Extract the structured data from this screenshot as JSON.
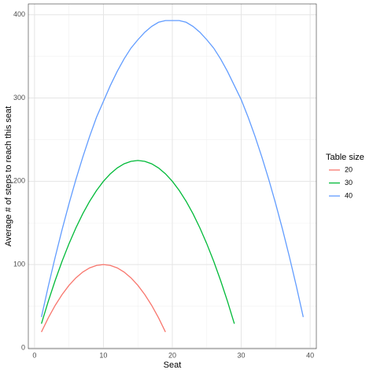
{
  "chart_data": {
    "type": "line",
    "x_label": "Seat",
    "y_label": "Average # of steps to reach this seat",
    "legend_title": "Table size",
    "legend_position": "right",
    "grid": true,
    "xlim": [
      -0.9,
      40.9
    ],
    "ylim": [
      -1,
      413
    ],
    "xticks": [
      0,
      10,
      20,
      30,
      40
    ],
    "yticks": [
      0,
      100,
      200,
      300,
      400
    ],
    "xminor": [
      5,
      15,
      25,
      35
    ],
    "yminor": [
      50,
      150,
      250,
      350
    ],
    "series": [
      {
        "name": "20",
        "color": "#f8766d",
        "x": [
          1,
          2,
          3,
          4,
          5,
          6,
          7,
          8,
          9,
          10,
          11,
          12,
          13,
          14,
          15,
          16,
          17,
          18,
          19
        ],
        "values": [
          19,
          36,
          51,
          64,
          75,
          84,
          91,
          96,
          99,
          100,
          99,
          96,
          91,
          84,
          75,
          64,
          51,
          36,
          19
        ]
      },
      {
        "name": "30",
        "color": "#00ba38",
        "x": [
          1,
          2,
          3,
          4,
          5,
          6,
          7,
          8,
          9,
          10,
          11,
          12,
          13,
          14,
          15,
          16,
          17,
          18,
          19,
          20,
          21,
          22,
          23,
          24,
          25,
          26,
          27,
          28,
          29
        ],
        "values": [
          29,
          56,
          81,
          104,
          125,
          144,
          161,
          176,
          189,
          200,
          209,
          216,
          221,
          224,
          225,
          224,
          221,
          216,
          209,
          200,
          189,
          176,
          161,
          144,
          125,
          104,
          81,
          56,
          29
        ]
      },
      {
        "name": "40",
        "color": "#619cff",
        "x": [
          1,
          2,
          3,
          4,
          5,
          6,
          7,
          8,
          9,
          10,
          11,
          12,
          13,
          14,
          15,
          16,
          17,
          18,
          19,
          20,
          21,
          22,
          23,
          24,
          25,
          26,
          27,
          28,
          29,
          30,
          31,
          32,
          33,
          34,
          35,
          36,
          37,
          38,
          39
        ],
        "values": [
          37,
          74,
          109,
          142,
          173,
          202,
          229,
          254,
          277,
          296,
          315,
          332,
          347,
          360,
          370,
          379,
          386,
          391,
          393,
          393,
          393,
          391,
          386,
          379,
          370,
          360,
          347,
          332,
          315,
          298,
          277,
          254,
          229,
          202,
          173,
          142,
          109,
          74,
          37
        ]
      }
    ]
  }
}
